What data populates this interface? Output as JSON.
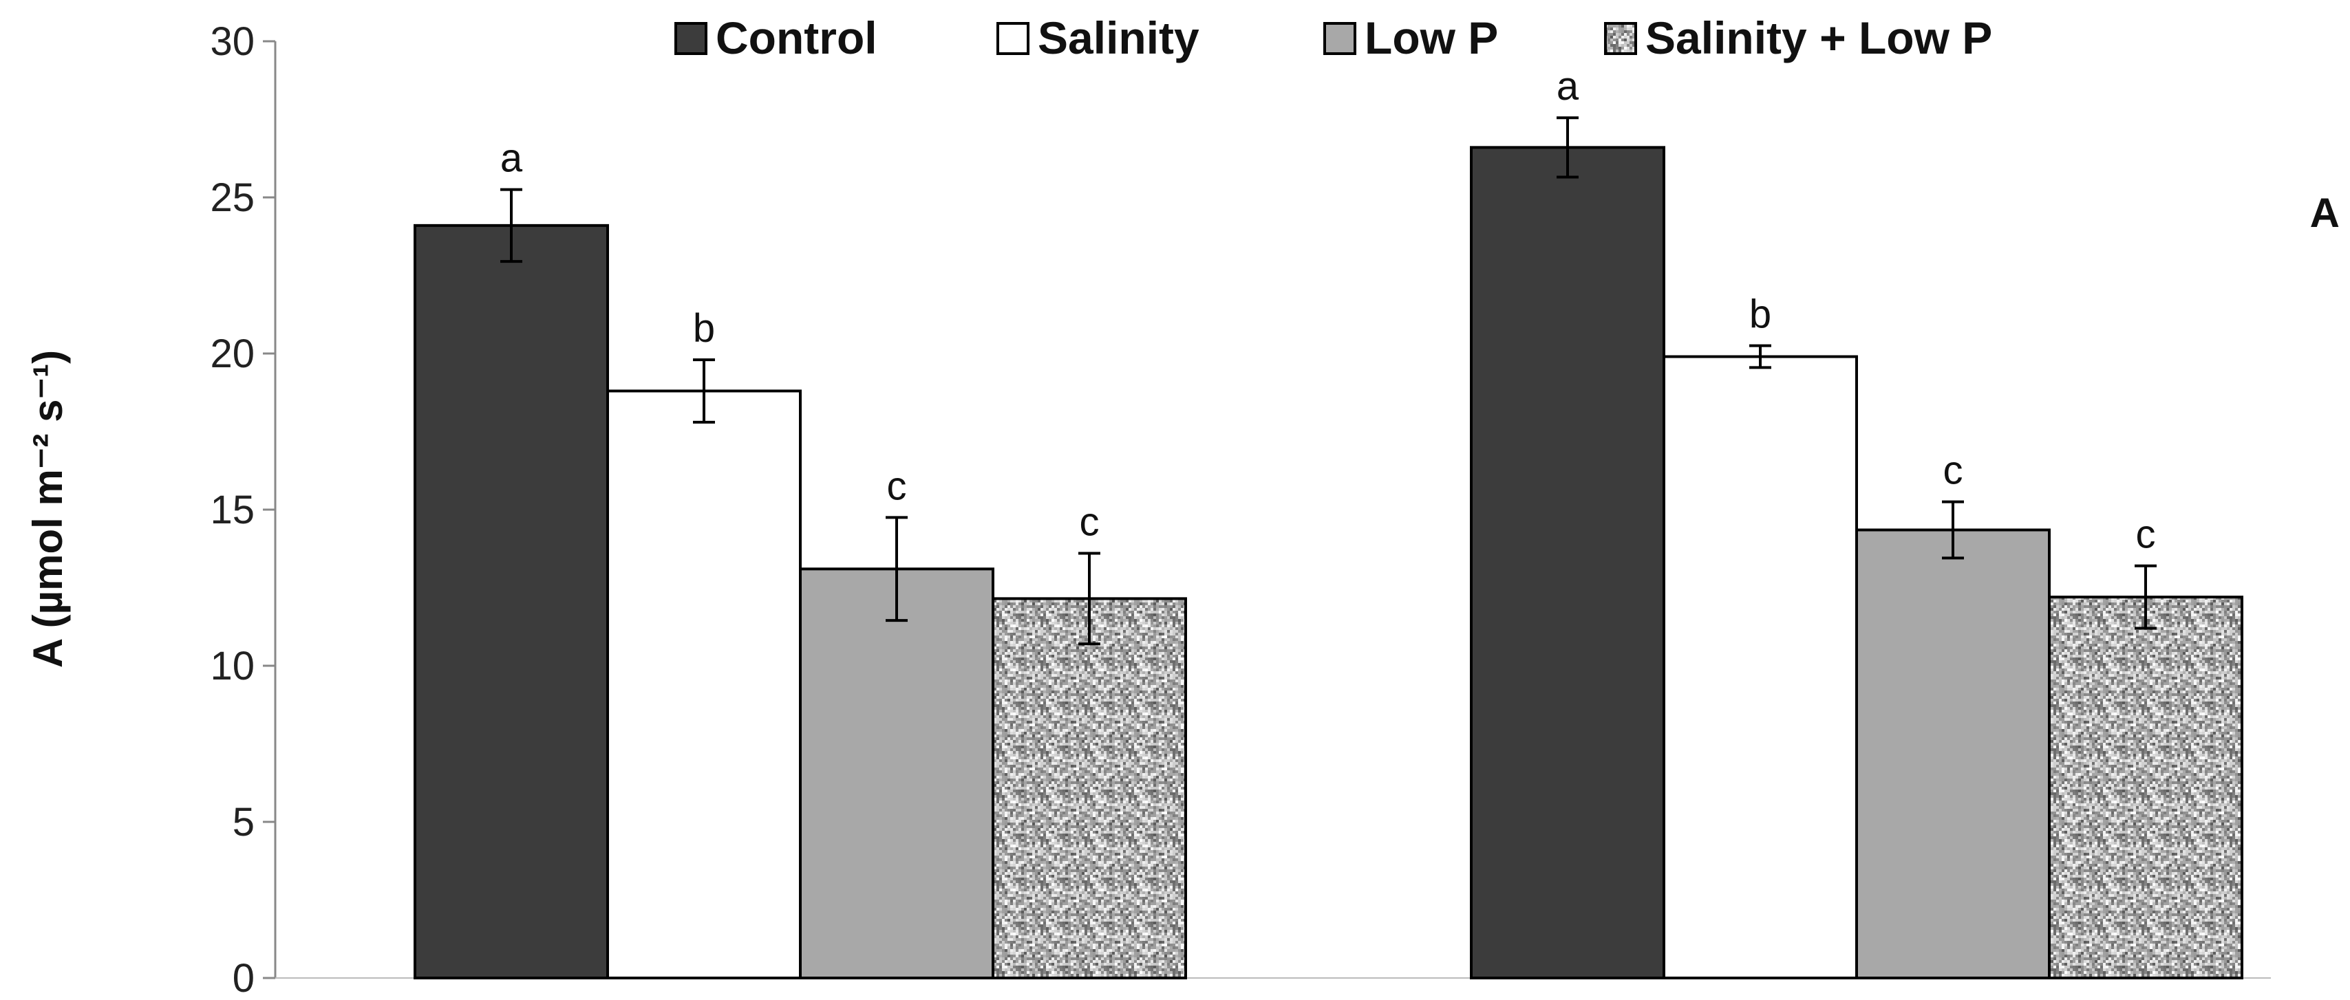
{
  "chart_data": {
    "type": "bar",
    "panel_label": "A",
    "ylabel": "A (µmol m⁻² s⁻¹)",
    "ylim": [
      0,
      30
    ],
    "yticks": [
      0,
      5,
      10,
      15,
      20,
      25,
      30
    ],
    "grid": false,
    "legend_position": "top",
    "categories": [
      "",
      ""
    ],
    "series": [
      {
        "name": "Control",
        "values": [
          24.1,
          26.6
        ],
        "errors": [
          1.15,
          0.95
        ],
        "letters": [
          "a",
          "a"
        ],
        "color": "#3c3c3c",
        "pattern": "solid"
      },
      {
        "name": "Salinity",
        "values": [
          18.8,
          19.9
        ],
        "errors": [
          1.0,
          0.35
        ],
        "letters": [
          "b",
          "b"
        ],
        "color": "#ffffff",
        "pattern": "solid"
      },
      {
        "name": "Low P",
        "values": [
          13.1,
          14.35
        ],
        "errors": [
          1.65,
          0.9
        ],
        "letters": [
          "c",
          "c"
        ],
        "color": "#a8a8a8",
        "pattern": "solid"
      },
      {
        "name": "Salinity + Low P",
        "values": [
          12.15,
          12.2
        ],
        "errors": [
          1.45,
          1.0
        ],
        "letters": [
          "c",
          "c"
        ],
        "color": "#bfbfbf",
        "pattern": "speckled"
      }
    ]
  }
}
